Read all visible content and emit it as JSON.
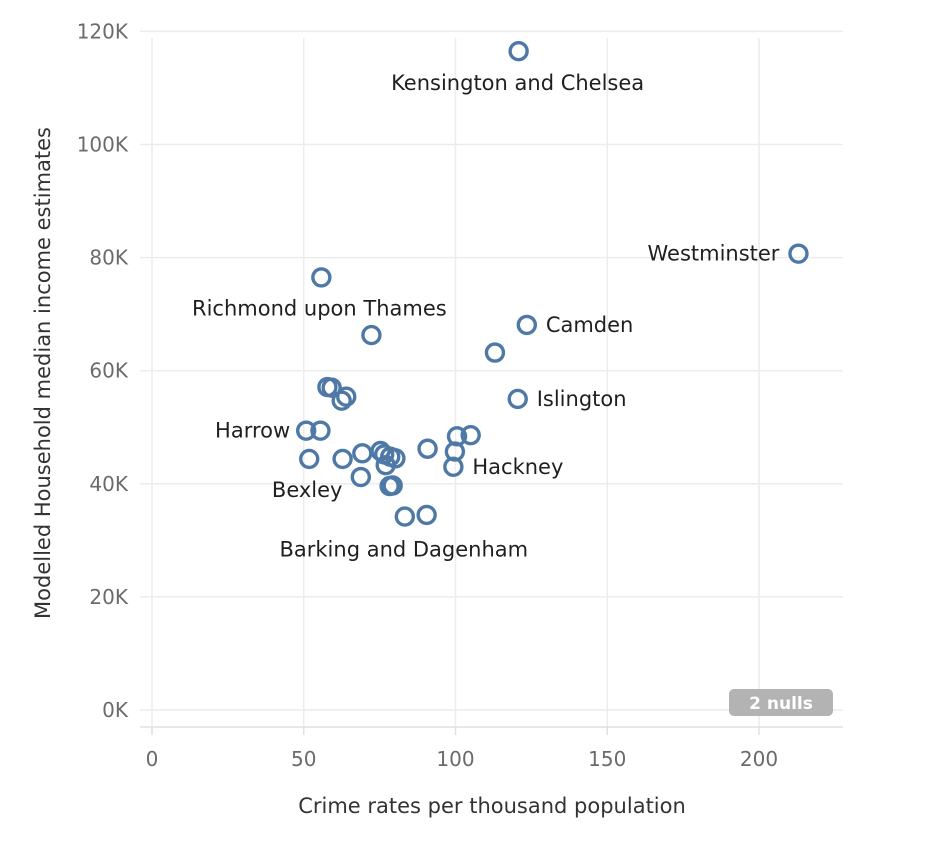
{
  "chart_data": {
    "type": "scatter",
    "xlabel": "Crime rates per thousand population",
    "ylabel": "Modelled Household median income estimates",
    "xlim": [
      0,
      225
    ],
    "ylim": [
      0,
      120000
    ],
    "xticks": [
      0,
      50,
      100,
      150,
      200
    ],
    "xtick_labels": [
      "0",
      "50",
      "100",
      "150",
      "200"
    ],
    "yticks": [
      0,
      20000,
      40000,
      60000,
      80000,
      100000,
      120000
    ],
    "ytick_labels": [
      "0K",
      "20K",
      "40K",
      "60K",
      "80K",
      "100K",
      "120K"
    ],
    "grid": true,
    "marker": "hollow-circle",
    "color": "#4e79a7",
    "points": [
      {
        "x": 120.8,
        "y": 116500,
        "label": "Kensington and Chelsea"
      },
      {
        "x": 213.0,
        "y": 80700,
        "label": "Westminster"
      },
      {
        "x": 55.8,
        "y": 76500,
        "label": "Richmond upon Thames"
      },
      {
        "x": 123.5,
        "y": 68100,
        "label": "Camden"
      },
      {
        "x": 72.3,
        "y": 66300,
        "label": ""
      },
      {
        "x": 113.0,
        "y": 63200,
        "label": ""
      },
      {
        "x": 120.5,
        "y": 55000,
        "label": "Islington"
      },
      {
        "x": 57.8,
        "y": 57100,
        "label": ""
      },
      {
        "x": 59.2,
        "y": 57000,
        "label": ""
      },
      {
        "x": 64.0,
        "y": 55400,
        "label": ""
      },
      {
        "x": 62.5,
        "y": 54700,
        "label": ""
      },
      {
        "x": 50.8,
        "y": 49400,
        "label": "Harrow"
      },
      {
        "x": 55.5,
        "y": 49400,
        "label": ""
      },
      {
        "x": 51.8,
        "y": 44400,
        "label": "Bexley"
      },
      {
        "x": 62.8,
        "y": 44400,
        "label": ""
      },
      {
        "x": 69.3,
        "y": 45400,
        "label": ""
      },
      {
        "x": 75.3,
        "y": 45800,
        "label": ""
      },
      {
        "x": 76.5,
        "y": 45200,
        "label": ""
      },
      {
        "x": 78.5,
        "y": 44800,
        "label": ""
      },
      {
        "x": 80.2,
        "y": 44500,
        "label": ""
      },
      {
        "x": 77.0,
        "y": 43300,
        "label": ""
      },
      {
        "x": 68.8,
        "y": 41200,
        "label": ""
      },
      {
        "x": 78.3,
        "y": 39600,
        "label": ""
      },
      {
        "x": 79.3,
        "y": 39700,
        "label": ""
      },
      {
        "x": 90.8,
        "y": 46200,
        "label": ""
      },
      {
        "x": 99.8,
        "y": 45700,
        "label": ""
      },
      {
        "x": 100.5,
        "y": 48400,
        "label": ""
      },
      {
        "x": 105.0,
        "y": 48600,
        "label": ""
      },
      {
        "x": 99.3,
        "y": 43000,
        "label": "Hackney"
      },
      {
        "x": 83.3,
        "y": 34200,
        "label": "Barking and Dagenham"
      },
      {
        "x": 90.5,
        "y": 34500,
        "label": ""
      }
    ],
    "annotations": [
      "2 nulls"
    ]
  }
}
